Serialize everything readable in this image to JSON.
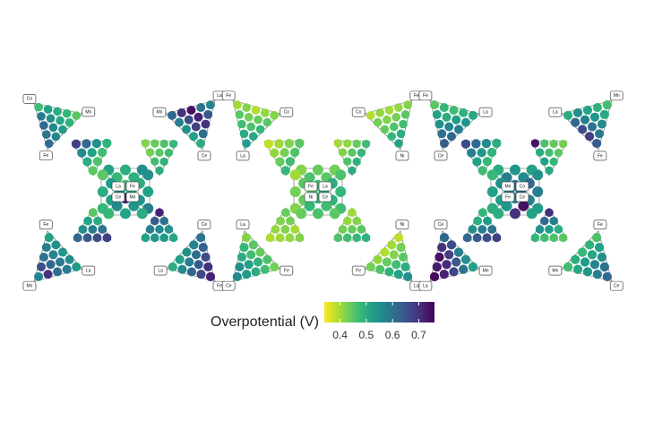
{
  "chart_data": {
    "type": "ternary",
    "colorscale": "viridis",
    "reversed": true,
    "triangles": [
      {
        "labels": [
          "Co",
          "Mn",
          "Fe"
        ],
        "values": [
          0.47,
          0.52,
          0.58,
          0.5,
          0.55,
          0.62,
          0.48,
          0.51,
          0.56,
          0.6,
          0.45,
          0.49,
          0.53,
          0.57,
          0.61
        ]
      },
      {
        "labels": [
          "Mn",
          "La",
          "Ce"
        ],
        "values": [
          0.62,
          0.7,
          0.58,
          0.74,
          0.66,
          0.55,
          0.6,
          0.72,
          0.68,
          0.52,
          0.57,
          0.64,
          0.7,
          0.61,
          0.5
        ]
      },
      {
        "labels": [
          "Fe",
          "Co",
          "La"
        ],
        "values": [
          0.4,
          0.42,
          0.45,
          0.39,
          0.43,
          0.47,
          0.41,
          0.44,
          0.46,
          0.5,
          0.42,
          0.45,
          0.48,
          0.51,
          0.53
        ]
      },
      {
        "labels": [
          "Co",
          "Fe",
          "Ni"
        ],
        "values": [
          0.39,
          0.41,
          0.43,
          0.4,
          0.42,
          0.44,
          0.41,
          0.43,
          0.46,
          0.48,
          0.42,
          0.45,
          0.47,
          0.5,
          0.52
        ]
      },
      {
        "labels": [
          "Fe",
          "La",
          "Ce"
        ],
        "values": [
          0.45,
          0.48,
          0.52,
          0.47,
          0.5,
          0.55,
          0.49,
          0.53,
          0.57,
          0.6,
          0.51,
          0.54,
          0.58,
          0.62,
          0.64
        ]
      },
      {
        "labels": [
          "La",
          "Mn",
          "Fe"
        ],
        "values": [
          0.5,
          0.55,
          0.62,
          0.52,
          0.58,
          0.66,
          0.49,
          0.54,
          0.6,
          0.68,
          0.47,
          0.51,
          0.56,
          0.59,
          0.63
        ]
      },
      {
        "labels": [
          "Fe",
          "La",
          "Mn"
        ],
        "values": [
          0.52,
          0.55,
          0.58,
          0.54,
          0.57,
          0.6,
          0.56,
          0.59,
          0.62,
          0.66,
          0.53,
          0.58,
          0.61,
          0.7,
          0.57
        ]
      },
      {
        "labels": [
          "Ce",
          "La",
          "Fe"
        ],
        "values": [
          0.6,
          0.57,
          0.63,
          0.55,
          0.61,
          0.66,
          0.52,
          0.58,
          0.64,
          0.7,
          0.5,
          0.56,
          0.62,
          0.67,
          0.72
        ]
      },
      {
        "labels": [
          "La",
          "Fe",
          "Ce"
        ],
        "values": [
          0.42,
          0.45,
          0.48,
          0.44,
          0.47,
          0.5,
          0.46,
          0.49,
          0.52,
          0.55,
          0.43,
          0.47,
          0.5,
          0.53,
          0.56
        ]
      },
      {
        "labels": [
          "Ni",
          "Fe",
          "La"
        ],
        "values": [
          0.38,
          0.4,
          0.43,
          0.39,
          0.42,
          0.45,
          0.41,
          0.44,
          0.47,
          0.5,
          0.43,
          0.46,
          0.49,
          0.52,
          0.55
        ]
      },
      {
        "labels": [
          "Ce",
          "Mn",
          "La"
        ],
        "values": [
          0.62,
          0.66,
          0.7,
          0.58,
          0.68,
          0.74,
          0.55,
          0.64,
          0.71,
          0.73,
          0.52,
          0.6,
          0.67,
          0.72,
          0.75
        ]
      },
      {
        "labels": [
          "Fe",
          "Mn",
          "Ce"
        ],
        "values": [
          0.46,
          0.49,
          0.52,
          0.48,
          0.51,
          0.55,
          0.5,
          0.53,
          0.57,
          0.6,
          0.47,
          0.51,
          0.54,
          0.58,
          0.62
        ]
      },
      {
        "values": [
          0.68,
          0.62,
          0.56,
          0.55,
          0.52,
          0.5,
          0.49,
          0.47,
          0.46,
          0.45
        ]
      },
      {
        "values": [
          0.42,
          0.44,
          0.43,
          0.46,
          0.45,
          0.47,
          0.48,
          0.47,
          0.49,
          0.5
        ]
      },
      {
        "values": [
          0.45,
          0.52,
          0.5,
          0.55,
          0.58,
          0.6,
          0.62,
          0.64,
          0.66,
          0.68
        ]
      },
      {
        "values": [
          0.72,
          0.64,
          0.6,
          0.58,
          0.56,
          0.55,
          0.52,
          0.54,
          0.53,
          0.51
        ]
      },
      {
        "values": [
          0.38,
          0.4,
          0.41,
          0.42,
          0.43,
          0.44,
          0.45,
          0.46,
          0.47,
          0.48
        ]
      },
      {
        "values": [
          0.4,
          0.41,
          0.42,
          0.44,
          0.45,
          0.46,
          0.47,
          0.48,
          0.49,
          0.5
        ]
      },
      {
        "values": [
          0.44,
          0.42,
          0.43,
          0.41,
          0.42,
          0.4,
          0.39,
          0.4,
          0.41,
          0.42
        ]
      },
      {
        "values": [
          0.4,
          0.41,
          0.42,
          0.43,
          0.44,
          0.45,
          0.46,
          0.47,
          0.48,
          0.49
        ]
      },
      {
        "values": [
          0.66,
          0.62,
          0.58,
          0.56,
          0.54,
          0.52,
          0.5,
          0.49,
          0.48,
          0.47
        ]
      },
      {
        "values": [
          0.74,
          0.46,
          0.5,
          0.44,
          0.47,
          0.52,
          0.43,
          0.45,
          0.48,
          0.51
        ]
      },
      {
        "values": [
          0.48,
          0.5,
          0.53,
          0.55,
          0.58,
          0.6,
          0.62,
          0.64,
          0.66,
          0.68
        ]
      },
      {
        "values": [
          0.7,
          0.62,
          0.58,
          0.55,
          0.53,
          0.5,
          0.48,
          0.47,
          0.46,
          0.45
        ]
      },
      {
        "values": [
          0.52,
          0.5,
          0.48,
          0.55,
          0.49,
          0.47
        ]
      },
      {
        "values": [
          0.45,
          0.5,
          0.53,
          0.48,
          0.52,
          0.56
        ]
      },
      {
        "values": [
          0.55,
          0.52,
          0.5,
          0.58,
          0.54,
          0.51
        ]
      },
      {
        "values": [
          0.48,
          0.52,
          0.56,
          0.5,
          0.54,
          0.72
        ]
      },
      {
        "values": [
          0.42,
          0.44,
          0.46,
          0.43,
          0.45,
          0.47
        ]
      },
      {
        "values": [
          0.4,
          0.43,
          0.45,
          0.42,
          0.44,
          0.46
        ]
      },
      {
        "values": [
          0.46,
          0.48,
          0.5,
          0.47,
          0.49,
          0.51
        ]
      },
      {
        "values": [
          0.44,
          0.46,
          0.48,
          0.45,
          0.47,
          0.49
        ]
      },
      {
        "values": [
          0.5,
          0.54,
          0.58,
          0.52,
          0.56,
          0.6
        ]
      },
      {
        "values": [
          0.48,
          0.52,
          0.55,
          0.5,
          0.53,
          0.57
        ]
      },
      {
        "values": [
          0.55,
          0.58,
          0.62,
          0.53,
          0.57,
          0.61
        ]
      },
      {
        "values": [
          0.5,
          0.7,
          0.54,
          0.52,
          0.74,
          0.58
        ]
      }
    ],
    "centers": [
      {
        "labels": [
          "La",
          "Fe",
          "Ce",
          "Mn"
        ]
      },
      {
        "labels": [
          "Fe",
          "La",
          "Ni",
          "Ce"
        ]
      },
      {
        "labels": [
          "Mn",
          "Co",
          "Fe",
          "Ce"
        ]
      }
    ],
    "colorbar": {
      "title": "Overpotential (V)",
      "lim": [
        0.34,
        0.76
      ],
      "ticks": [
        0.4,
        0.5,
        0.6,
        0.7
      ]
    }
  }
}
